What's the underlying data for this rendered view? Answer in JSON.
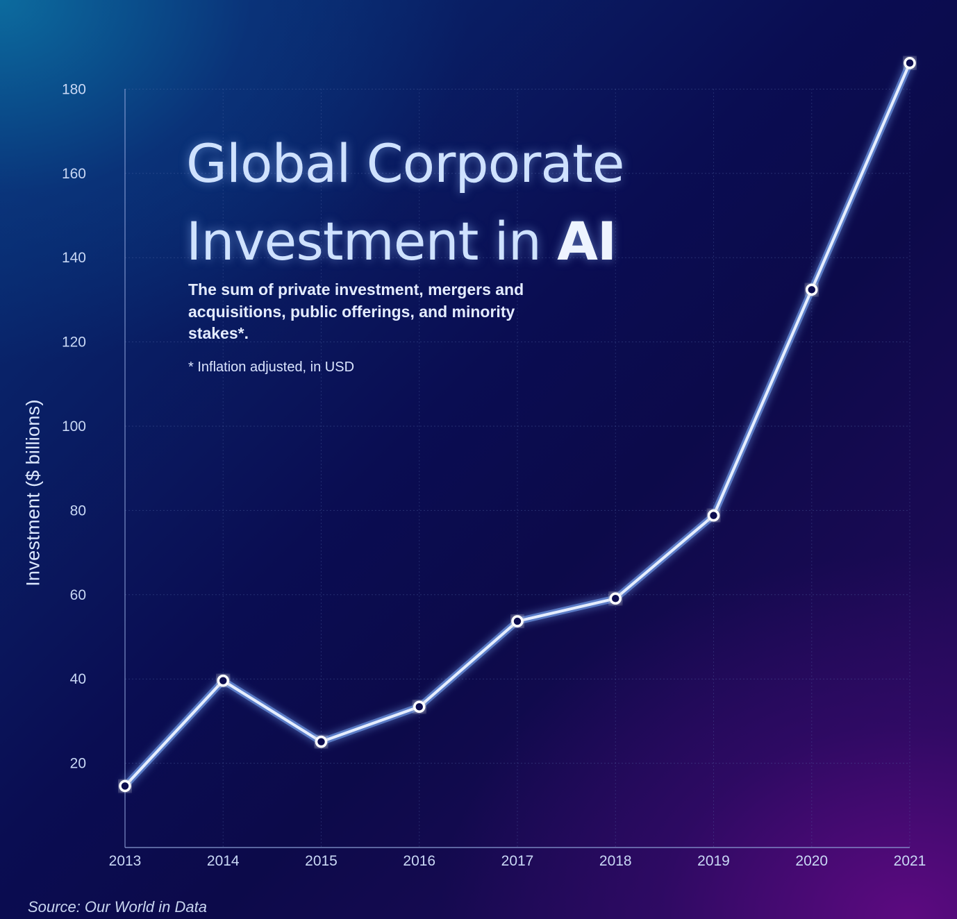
{
  "title": {
    "line1": "Global Corporate",
    "line2_regular": "Investment in ",
    "line2_emphasis": "AI"
  },
  "subtitle": "The sum of private investment, mergers and acquisitions, public offerings, and minority stakes*.",
  "footnote": "* Inflation adjusted, in USD",
  "source": "Source: Our World in Data",
  "colors": {
    "line": "#e6eeff",
    "glow": "#7fb0ff",
    "grid": "#5a6fb0",
    "axis": "#8fa2d8",
    "marker_fill": "#0b1150",
    "marker_stroke": "#ffffff"
  },
  "chart_data": {
    "type": "line",
    "title": "Global Corporate Investment in AI",
    "xlabel": "",
    "ylabel": "Investment ($ billions)",
    "x": [
      2013,
      2014,
      2015,
      2016,
      2017,
      2018,
      2019,
      2020,
      2021
    ],
    "series": [
      {
        "values": [
          14.6,
          39.6,
          25.1,
          33.4,
          53.7,
          59.1,
          78.8,
          132.4,
          186.2
        ]
      }
    ],
    "xticks": [
      "2013",
      "2014",
      "2015",
      "2016",
      "2017",
      "2018",
      "2019",
      "2020",
      "2021"
    ],
    "yticks": [
      "20",
      "40",
      "60",
      "80",
      "100",
      "120",
      "140",
      "160",
      "180"
    ],
    "ylim": [
      0,
      186
    ],
    "grid": true,
    "legend": "none"
  }
}
